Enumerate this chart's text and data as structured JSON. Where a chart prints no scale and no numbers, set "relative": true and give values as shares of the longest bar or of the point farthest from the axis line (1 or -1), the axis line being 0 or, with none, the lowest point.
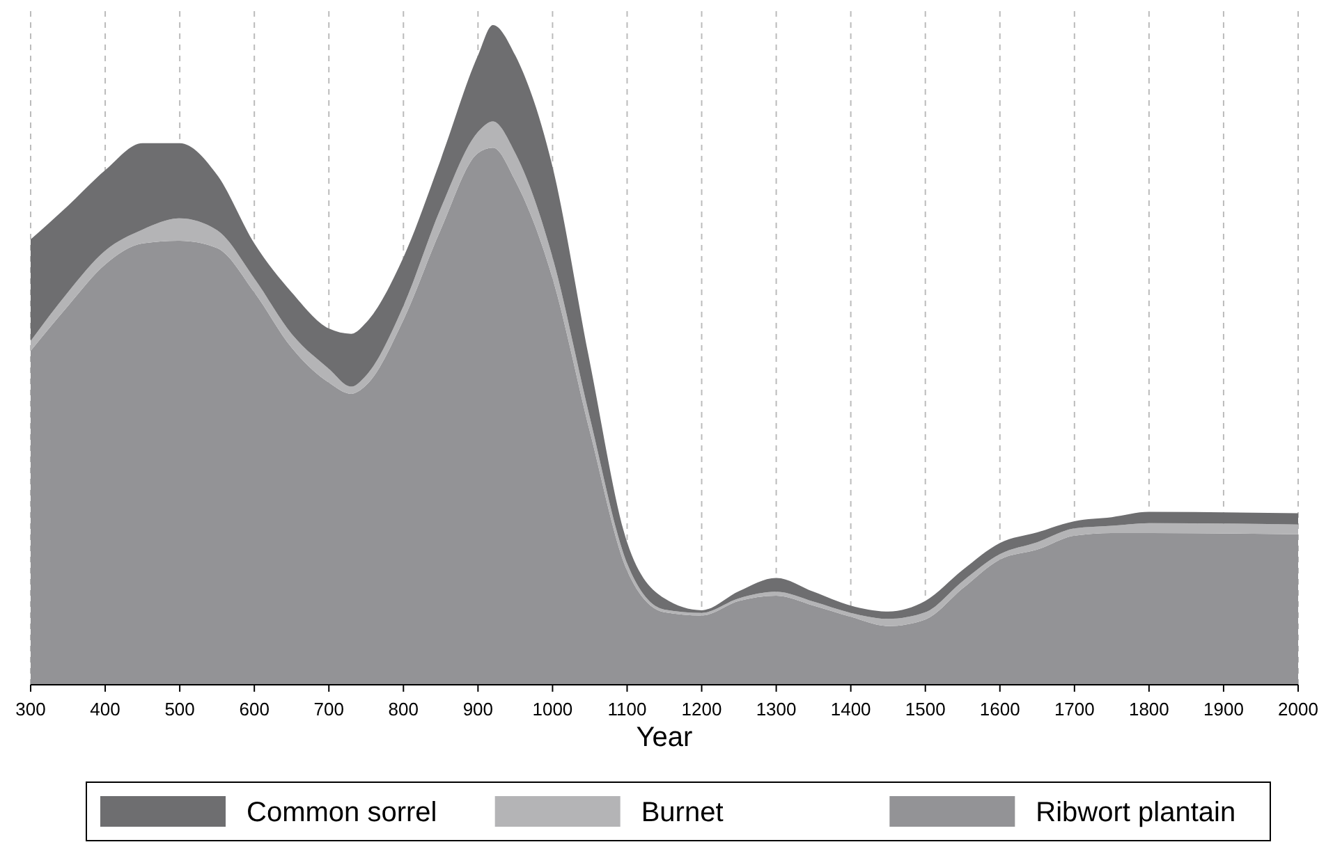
{
  "chart_data": {
    "type": "area",
    "stacked": true,
    "relative": true,
    "xlabel": "Year",
    "x": [
      300,
      350,
      400,
      450,
      500,
      550,
      600,
      650,
      700,
      730,
      750,
      800,
      850,
      900,
      920,
      950,
      1000,
      1050,
      1100,
      1150,
      1200,
      1250,
      1300,
      1350,
      1400,
      1450,
      1500,
      1550,
      1600,
      1650,
      1700,
      1750,
      1800,
      2000
    ],
    "xlim": [
      300,
      2000
    ],
    "xticks": [
      300,
      400,
      500,
      600,
      700,
      800,
      900,
      1000,
      1100,
      1200,
      1300,
      1400,
      1500,
      1600,
      1700,
      1800,
      1900,
      2000
    ],
    "grid": "x",
    "legend": "bottom",
    "series": [
      {
        "name": "Ribwort plantain",
        "color": "#939396",
        "values": [
          0.506,
          0.574,
          0.637,
          0.669,
          0.673,
          0.662,
          0.595,
          0.511,
          0.458,
          0.441,
          0.454,
          0.553,
          0.69,
          0.806,
          0.814,
          0.764,
          0.616,
          0.384,
          0.173,
          0.11,
          0.105,
          0.127,
          0.135,
          0.12,
          0.103,
          0.089,
          0.099,
          0.146,
          0.19,
          0.205,
          0.226,
          0.23,
          0.23,
          0.228
        ]
      },
      {
        "name": "Burnet",
        "color": "#b4b4b6",
        "values": [
          0.015,
          0.021,
          0.021,
          0.021,
          0.034,
          0.027,
          0.021,
          0.021,
          0.021,
          0.011,
          0.015,
          0.021,
          0.032,
          0.032,
          0.04,
          0.042,
          0.032,
          0.021,
          0.011,
          0.004,
          0.004,
          0.004,
          0.006,
          0.006,
          0.006,
          0.011,
          0.011,
          0.011,
          0.008,
          0.011,
          0.011,
          0.011,
          0.015,
          0.015
        ]
      },
      {
        "name": "Common sorrel",
        "color": "#6e6e70",
        "values": [
          0.154,
          0.131,
          0.122,
          0.131,
          0.114,
          0.084,
          0.053,
          0.063,
          0.061,
          0.08,
          0.08,
          0.074,
          0.074,
          0.116,
          0.146,
          0.148,
          0.137,
          0.084,
          0.032,
          0.017,
          0.004,
          0.011,
          0.021,
          0.015,
          0.011,
          0.011,
          0.017,
          0.017,
          0.017,
          0.015,
          0.011,
          0.013,
          0.017,
          0.017
        ]
      }
    ]
  }
}
